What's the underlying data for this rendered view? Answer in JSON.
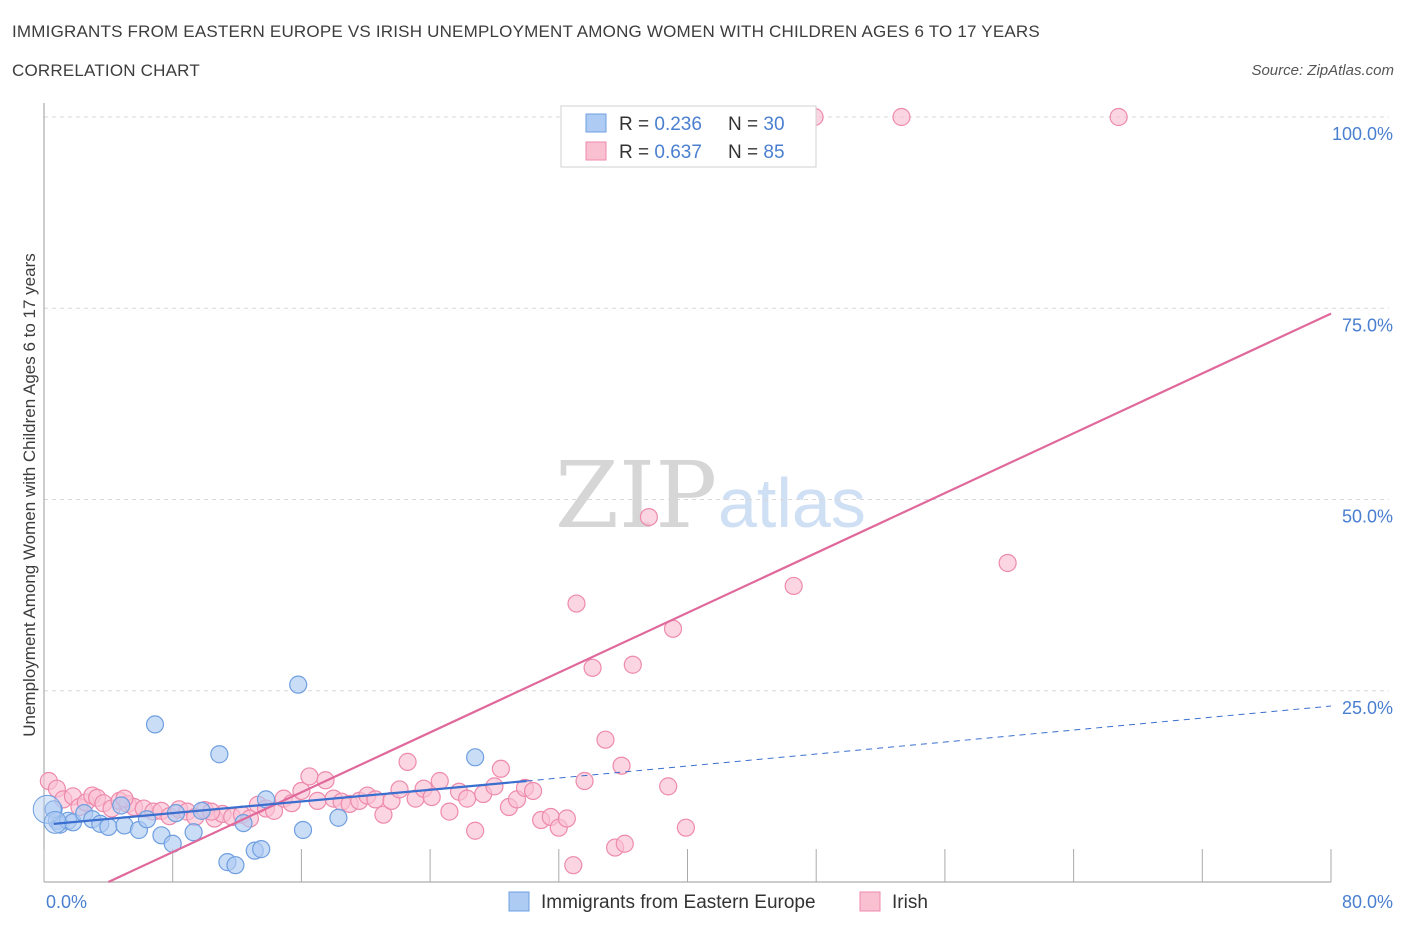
{
  "header": {
    "title": "IMMIGRANTS FROM EASTERN EUROPE VS IRISH UNEMPLOYMENT AMONG WOMEN WITH CHILDREN AGES 6 TO 17 YEARS",
    "subtitle": "CORRELATION CHART",
    "source": "Source: ZipAtlas.com"
  },
  "watermark": {
    "zip": "ZIP",
    "atlas": "atlas"
  },
  "colors": {
    "blue_fill": "#aecbf3",
    "blue_stroke": "#6f9fe0",
    "blue_line": "#3a6fcf",
    "pink_fill": "#f9c0d2",
    "pink_stroke": "#ee8aac",
    "pink_line": "#e0689a",
    "tick_text": "#4a7fd0",
    "grid": "#d8d8d8"
  },
  "legend_top": [
    {
      "r_label": "R = ",
      "r_value": "0.236",
      "n_label": "N = ",
      "n_value": "30",
      "color": "blue"
    },
    {
      "r_label": "R = ",
      "r_value": "0.637",
      "n_label": "N = ",
      "n_value": "85",
      "color": "pink"
    }
  ],
  "legend_bottom": [
    {
      "label": "Immigrants from Eastern Europe",
      "color": "blue"
    },
    {
      "label": "Irish",
      "color": "pink"
    }
  ],
  "chart_data": {
    "type": "scatter",
    "xlabel": "",
    "ylabel": "Unemployment Among Women with Children Ages 6 to 17 years",
    "xlim": [
      0,
      80
    ],
    "ylim": [
      0,
      100
    ],
    "x_tick_labels": [
      "0.0%",
      "80.0%"
    ],
    "y_tick_labels": [
      {
        "value": 100,
        "label": "100.0%"
      },
      {
        "value": 75,
        "label": "75.0%"
      },
      {
        "value": 50,
        "label": "50.0%"
      },
      {
        "value": 25,
        "label": "25.0%"
      }
    ],
    "grid": true,
    "series": [
      {
        "name": "Immigrants from Eastern Europe",
        "color": "blue",
        "points": [
          [
            0.6,
            9.5
          ],
          [
            0.8,
            8.0
          ],
          [
            1.0,
            7.5
          ],
          [
            1.5,
            8.0
          ],
          [
            1.8,
            7.8
          ],
          [
            2.5,
            9.0
          ],
          [
            3.0,
            8.2
          ],
          [
            3.5,
            7.6
          ],
          [
            4.0,
            7.2
          ],
          [
            4.8,
            10.0
          ],
          [
            5.0,
            7.4
          ],
          [
            5.9,
            6.8
          ],
          [
            6.4,
            8.2
          ],
          [
            6.9,
            20.6
          ],
          [
            7.3,
            6.1
          ],
          [
            8.0,
            5.0
          ],
          [
            8.2,
            9.0
          ],
          [
            9.3,
            6.5
          ],
          [
            9.8,
            9.3
          ],
          [
            10.9,
            16.7
          ],
          [
            11.4,
            2.6
          ],
          [
            11.9,
            2.2
          ],
          [
            12.4,
            7.7
          ],
          [
            13.1,
            4.1
          ],
          [
            13.5,
            4.3
          ],
          [
            13.8,
            10.8
          ],
          [
            15.8,
            25.8
          ],
          [
            16.1,
            6.8
          ],
          [
            18.3,
            8.4
          ],
          [
            26.8,
            16.3
          ]
        ],
        "trend": {
          "x": [
            0.6,
            30
          ],
          "y": [
            7.6,
            13.2
          ],
          "dashed_extension_to": [
            80,
            23.0
          ]
        }
      },
      {
        "name": "Irish",
        "color": "pink",
        "points": [
          [
            0.3,
            13.2
          ],
          [
            0.8,
            12.2
          ],
          [
            1.2,
            10.8
          ],
          [
            1.8,
            11.2
          ],
          [
            2.2,
            9.8
          ],
          [
            2.6,
            10.4
          ],
          [
            3.0,
            11.3
          ],
          [
            3.3,
            11.0
          ],
          [
            3.7,
            10.3
          ],
          [
            4.2,
            9.6
          ],
          [
            4.7,
            10.6
          ],
          [
            5.2,
            10.2
          ],
          [
            5.6,
            9.8
          ],
          [
            6.2,
            9.6
          ],
          [
            6.8,
            9.2
          ],
          [
            7.3,
            9.3
          ],
          [
            7.8,
            8.6
          ],
          [
            8.4,
            9.5
          ],
          [
            8.9,
            9.2
          ],
          [
            9.4,
            8.5
          ],
          [
            10.0,
            9.4
          ],
          [
            10.6,
            8.3
          ],
          [
            11.1,
            8.9
          ],
          [
            11.7,
            8.5
          ],
          [
            12.3,
            8.8
          ],
          [
            12.8,
            8.3
          ],
          [
            13.3,
            10.1
          ],
          [
            13.8,
            9.6
          ],
          [
            14.3,
            9.3
          ],
          [
            14.9,
            10.9
          ],
          [
            15.4,
            10.3
          ],
          [
            16.0,
            11.9
          ],
          [
            16.5,
            13.8
          ],
          [
            17.0,
            10.6
          ],
          [
            17.5,
            13.3
          ],
          [
            18.0,
            10.9
          ],
          [
            18.5,
            10.5
          ],
          [
            19.0,
            10.2
          ],
          [
            19.6,
            10.6
          ],
          [
            20.1,
            11.3
          ],
          [
            20.6,
            10.8
          ],
          [
            21.1,
            8.8
          ],
          [
            21.6,
            10.6
          ],
          [
            22.1,
            12.1
          ],
          [
            22.6,
            15.7
          ],
          [
            23.1,
            10.9
          ],
          [
            23.6,
            12.2
          ],
          [
            24.1,
            11.1
          ],
          [
            24.6,
            13.2
          ],
          [
            25.2,
            9.2
          ],
          [
            25.8,
            11.8
          ],
          [
            26.3,
            10.9
          ],
          [
            26.8,
            6.7
          ],
          [
            27.3,
            11.5
          ],
          [
            28.0,
            12.5
          ],
          [
            28.4,
            14.8
          ],
          [
            28.9,
            9.8
          ],
          [
            29.4,
            10.8
          ],
          [
            29.9,
            12.3
          ],
          [
            30.4,
            11.9
          ],
          [
            30.9,
            8.1
          ],
          [
            31.5,
            8.5
          ],
          [
            32.0,
            7.1
          ],
          [
            32.5,
            8.3
          ],
          [
            32.9,
            2.2
          ],
          [
            33.1,
            36.4
          ],
          [
            33.6,
            13.2
          ],
          [
            34.1,
            28.0
          ],
          [
            34.9,
            18.6
          ],
          [
            35.5,
            4.5
          ],
          [
            35.9,
            15.2
          ],
          [
            36.1,
            5.0
          ],
          [
            36.6,
            28.4
          ],
          [
            37.6,
            47.7
          ],
          [
            38.8,
            12.5
          ],
          [
            39.1,
            33.1
          ],
          [
            39.9,
            7.1
          ],
          [
            46.6,
            38.7
          ],
          [
            59.9,
            41.7
          ],
          [
            47.9,
            100.0
          ],
          [
            53.3,
            100.0
          ],
          [
            66.8,
            100.0
          ],
          [
            44.8,
            100.0
          ],
          [
            10.4,
            9.2
          ],
          [
            5.0,
            10.9
          ]
        ],
        "trend": {
          "x": [
            4,
            80
          ],
          "y": [
            0,
            74.3
          ]
        }
      }
    ]
  }
}
